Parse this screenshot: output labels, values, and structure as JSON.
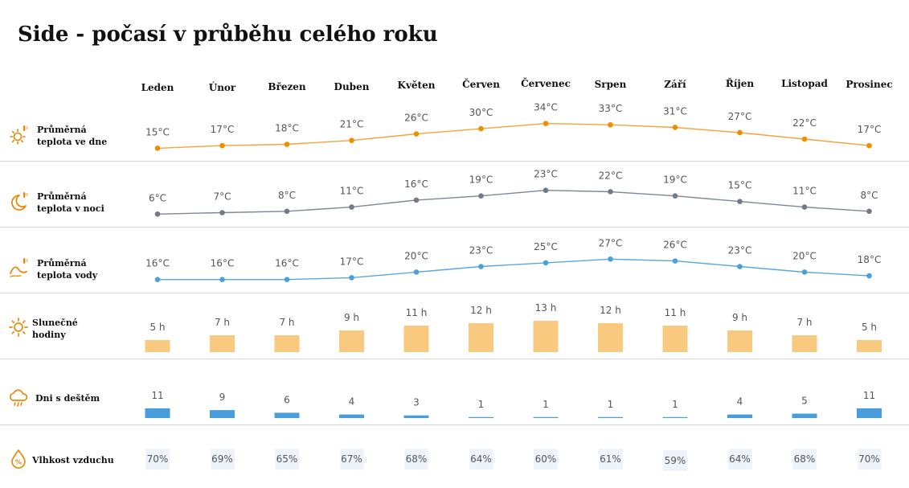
{
  "page": {
    "title": "Side - počasí v průběhu celého roku",
    "colors": {
      "accent_orange": "#e98a0a",
      "day_line": "#f2a53a",
      "day_dot": "#ef8f00",
      "night_line": "#7c8896",
      "night_dot": "#6f7b88",
      "water_line": "#5aa9dd",
      "water_dot": "#4aa0da",
      "sun_bar": "#f9c97f",
      "rain_bar": "#4a9ddc",
      "humidity_box": "#eef4fa"
    }
  },
  "chart_data": {
    "type": "line",
    "categories": [
      "Leden",
      "Únor",
      "Březen",
      "Duben",
      "Květen",
      "Červen",
      "Červenec",
      "Srpen",
      "Září",
      "Říjen",
      "Listopad",
      "Prosinec"
    ],
    "unit": "°C",
    "rows": [
      {
        "key": "day",
        "kind": "line",
        "label": [
          "Průměrná",
          "teplota ve dne"
        ],
        "icon": "sun-thermometer-icon",
        "values": [
          15,
          17,
          18,
          21,
          26,
          30,
          34,
          33,
          31,
          27,
          22,
          17
        ],
        "suffix": "°C"
      },
      {
        "key": "night",
        "kind": "line",
        "label": [
          "Průměrná",
          "teplota v noci"
        ],
        "icon": "moon-thermometer-icon",
        "values": [
          6,
          7,
          8,
          11,
          16,
          19,
          23,
          22,
          19,
          15,
          11,
          8
        ],
        "suffix": "°C"
      },
      {
        "key": "water",
        "kind": "line",
        "label": [
          "Průměrná",
          "teplota vody"
        ],
        "icon": "wave-thermometer-icon",
        "values": [
          16,
          16,
          16,
          17,
          20,
          23,
          25,
          27,
          26,
          23,
          20,
          18
        ],
        "suffix": "°C"
      },
      {
        "key": "sunshine",
        "kind": "bar",
        "label": [
          "Slunečné",
          "hodiny"
        ],
        "icon": "sun-icon",
        "values": [
          5,
          7,
          7,
          9,
          11,
          12,
          13,
          12,
          11,
          9,
          7,
          5
        ],
        "suffix": " h"
      },
      {
        "key": "rain",
        "kind": "bar",
        "label": [
          "Dni s deštěm"
        ],
        "icon": "rain-cloud-icon",
        "values": [
          11,
          9,
          6,
          4,
          3,
          1,
          1,
          1,
          1,
          4,
          5,
          11
        ],
        "suffix": ""
      },
      {
        "key": "humidity",
        "kind": "box",
        "label": [
          "Vlhkost vzduchu"
        ],
        "icon": "humidity-drop-icon",
        "values": [
          70,
          69,
          65,
          67,
          68,
          64,
          60,
          61,
          59,
          64,
          68,
          70
        ],
        "suffix": "%"
      }
    ]
  }
}
